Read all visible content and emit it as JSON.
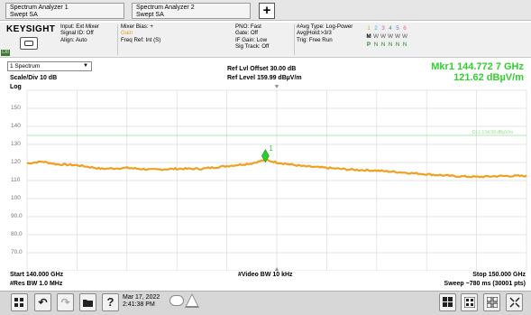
{
  "tabs": [
    {
      "line1": "Spectrum Analyzer 1",
      "line2": "Swept SA"
    },
    {
      "line1": "Spectrum Analyzer 2",
      "line2": "Swept SA"
    }
  ],
  "add_tab_symbol": "+",
  "settings": {
    "brand": "KEYSIGHT",
    "lxi": "LXI",
    "input": [
      "Input: Ext Mixer",
      "Signal ID: Off",
      "Align: Auto"
    ],
    "mixer": [
      "Mixer Bias: +",
      "Gain",
      "Freq Ref: Int (S)"
    ],
    "pno": [
      "PNO: Fast",
      "Gate: Off",
      "IF Gain: Low",
      "Sig Track: Off"
    ],
    "avg": [
      "#Avg Type: Log-Power",
      "Avg|Hold:>3/3",
      "Trig: Free Run"
    ],
    "traces": {
      "numbers": [
        "1",
        "2",
        "3",
        "4",
        "5",
        "6"
      ],
      "types": [
        "M",
        "W",
        "W",
        "W",
        "W",
        "W"
      ],
      "detectors": [
        "P",
        "N",
        "N",
        "N",
        "N",
        "N"
      ]
    }
  },
  "header": {
    "view": "1 Spectrum",
    "scale": "Scale/Div 10 dB",
    "ref_offset": "Ref Lvl Offset 30.00 dB",
    "ref_level": "Ref Level 159.99 dBµV/m",
    "marker_label": "Mkr1  144.772 7 GHz",
    "marker_value": "121.62 dBµV/m"
  },
  "graph": {
    "scale_type": "Log",
    "y_labels": [
      "150",
      "140",
      "130",
      "120",
      "110",
      "100",
      "90.0",
      "80.0",
      "70.0"
    ],
    "limit_label": "DL1 134.99 dBµV/m",
    "marker_number": "1",
    "colors": {
      "trace": "#f0a020",
      "limit": "#90e090",
      "marker": "#2ad02a",
      "grid": "#dcdcdc"
    }
  },
  "chart_data": {
    "type": "line",
    "x_unit": "GHz",
    "y_unit": "dBµV/m",
    "xlim": [
      140.0,
      150.0
    ],
    "ylim": [
      60,
      160
    ],
    "display_line": 134.99,
    "marker": {
      "x": 144.7727,
      "y": 121.62
    },
    "series": [
      {
        "x": [
          140.0,
          140.3,
          140.6,
          141.0,
          141.5,
          142.0,
          142.5,
          143.0,
          143.5,
          144.0,
          144.5,
          144.77,
          145.0,
          145.5,
          146.0,
          146.5,
          147.0,
          147.5,
          148.0,
          148.5,
          149.0,
          149.5,
          150.0
        ],
        "values": [
          119.5,
          120.5,
          119.0,
          118.5,
          116.5,
          117.0,
          116.0,
          116.5,
          116.5,
          118.0,
          119.5,
          121.5,
          120.0,
          118.0,
          117.0,
          116.0,
          115.5,
          114.5,
          113.5,
          112.5,
          112.0,
          112.5,
          112.5
        ]
      }
    ]
  },
  "footer": {
    "start": "Start 140.000 GHz",
    "rbw": "#Res BW 1.0 MHz",
    "vbw": "#Video BW 10 kHz",
    "stop": "Stop 150.000 GHz",
    "sweep": "Sweep ~780 ms (30001 pts)"
  },
  "toolbar": {
    "date": "Mar 17, 2022",
    "time": "2:41:38 PM",
    "help": "?"
  }
}
